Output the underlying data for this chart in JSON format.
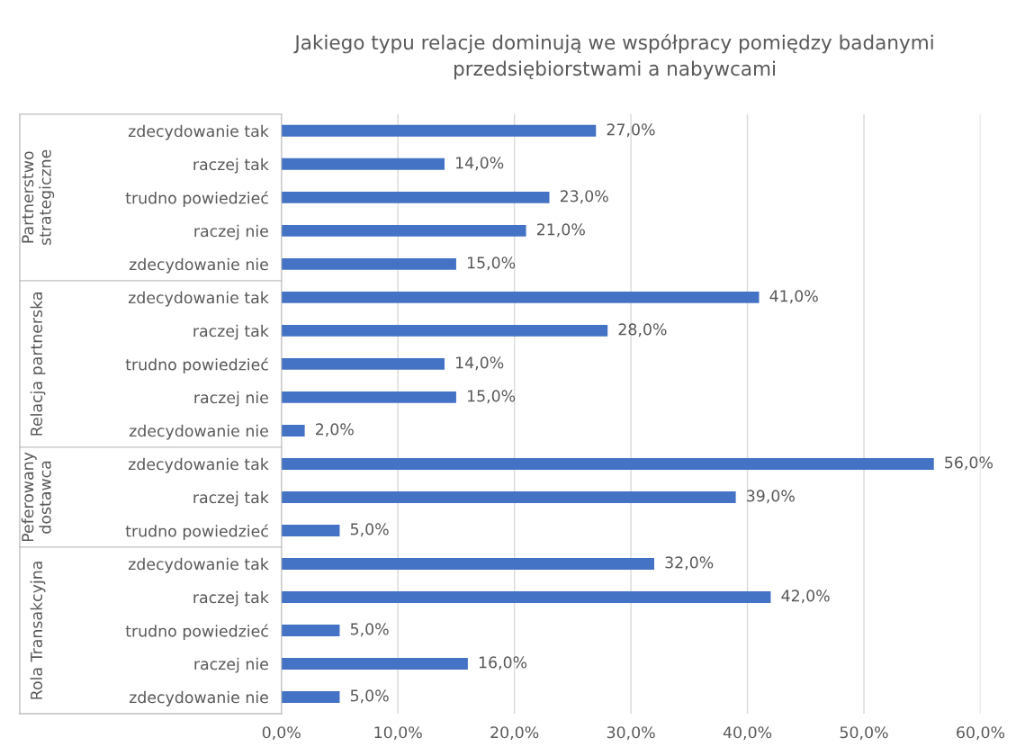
{
  "chart_data": {
    "type": "bar",
    "orientation": "horizontal",
    "title": "Jakiego typu relacje dominują we współpracy pomiędzy badanymi\nprzedsiębiorstwami a nabywcami",
    "categories": [
      "zdecydowanie tak",
      "raczej tak",
      "trudno powiedzieć",
      "raczej nie",
      "zdecydowanie nie",
      "zdecydowanie tak",
      "raczej tak",
      "trudno powiedzieć",
      "raczej nie",
      "zdecydowanie nie",
      "zdecydowanie tak",
      "raczej tak",
      "trudno powiedzieć",
      "zdecydowanie tak",
      "raczej tak",
      "trudno powiedzieć",
      "raczej nie",
      "zdecydowanie nie"
    ],
    "values": [
      27,
      14,
      23,
      21,
      15,
      41,
      28,
      14,
      15,
      2,
      56,
      39,
      5,
      32,
      42,
      5,
      16,
      5
    ],
    "value_labels": [
      "27,0%",
      "14,0%",
      "23,0%",
      "21,0%",
      "15,0%",
      "41,0%",
      "28,0%",
      "14,0%",
      "15,0%",
      "2,0%",
      "56,0%",
      "39,0%",
      "5,0%",
      "32,0%",
      "42,0%",
      "5,0%",
      "16,0%",
      "5,0%"
    ],
    "color": "#4472c4",
    "annotations": [
      "Partnerstwo\nstrategiczne",
      "Relacja partnerska",
      "Peferowany\ndostawca",
      "Rola Transakcyjna"
    ],
    "xlim": [
      0,
      60
    ],
    "xticks": [
      {
        "value": 0,
        "label": "0,0%"
      },
      {
        "value": 10,
        "label": "10,0%"
      },
      {
        "value": 20,
        "label": "20,0%"
      },
      {
        "value": 30,
        "label": "30,0%"
      },
      {
        "value": 40,
        "label": "40,0%"
      },
      {
        "value": 50,
        "label": "50,0%"
      },
      {
        "value": 60,
        "label": "60,0%"
      }
    ],
    "grid": "x",
    "legend": false
  }
}
